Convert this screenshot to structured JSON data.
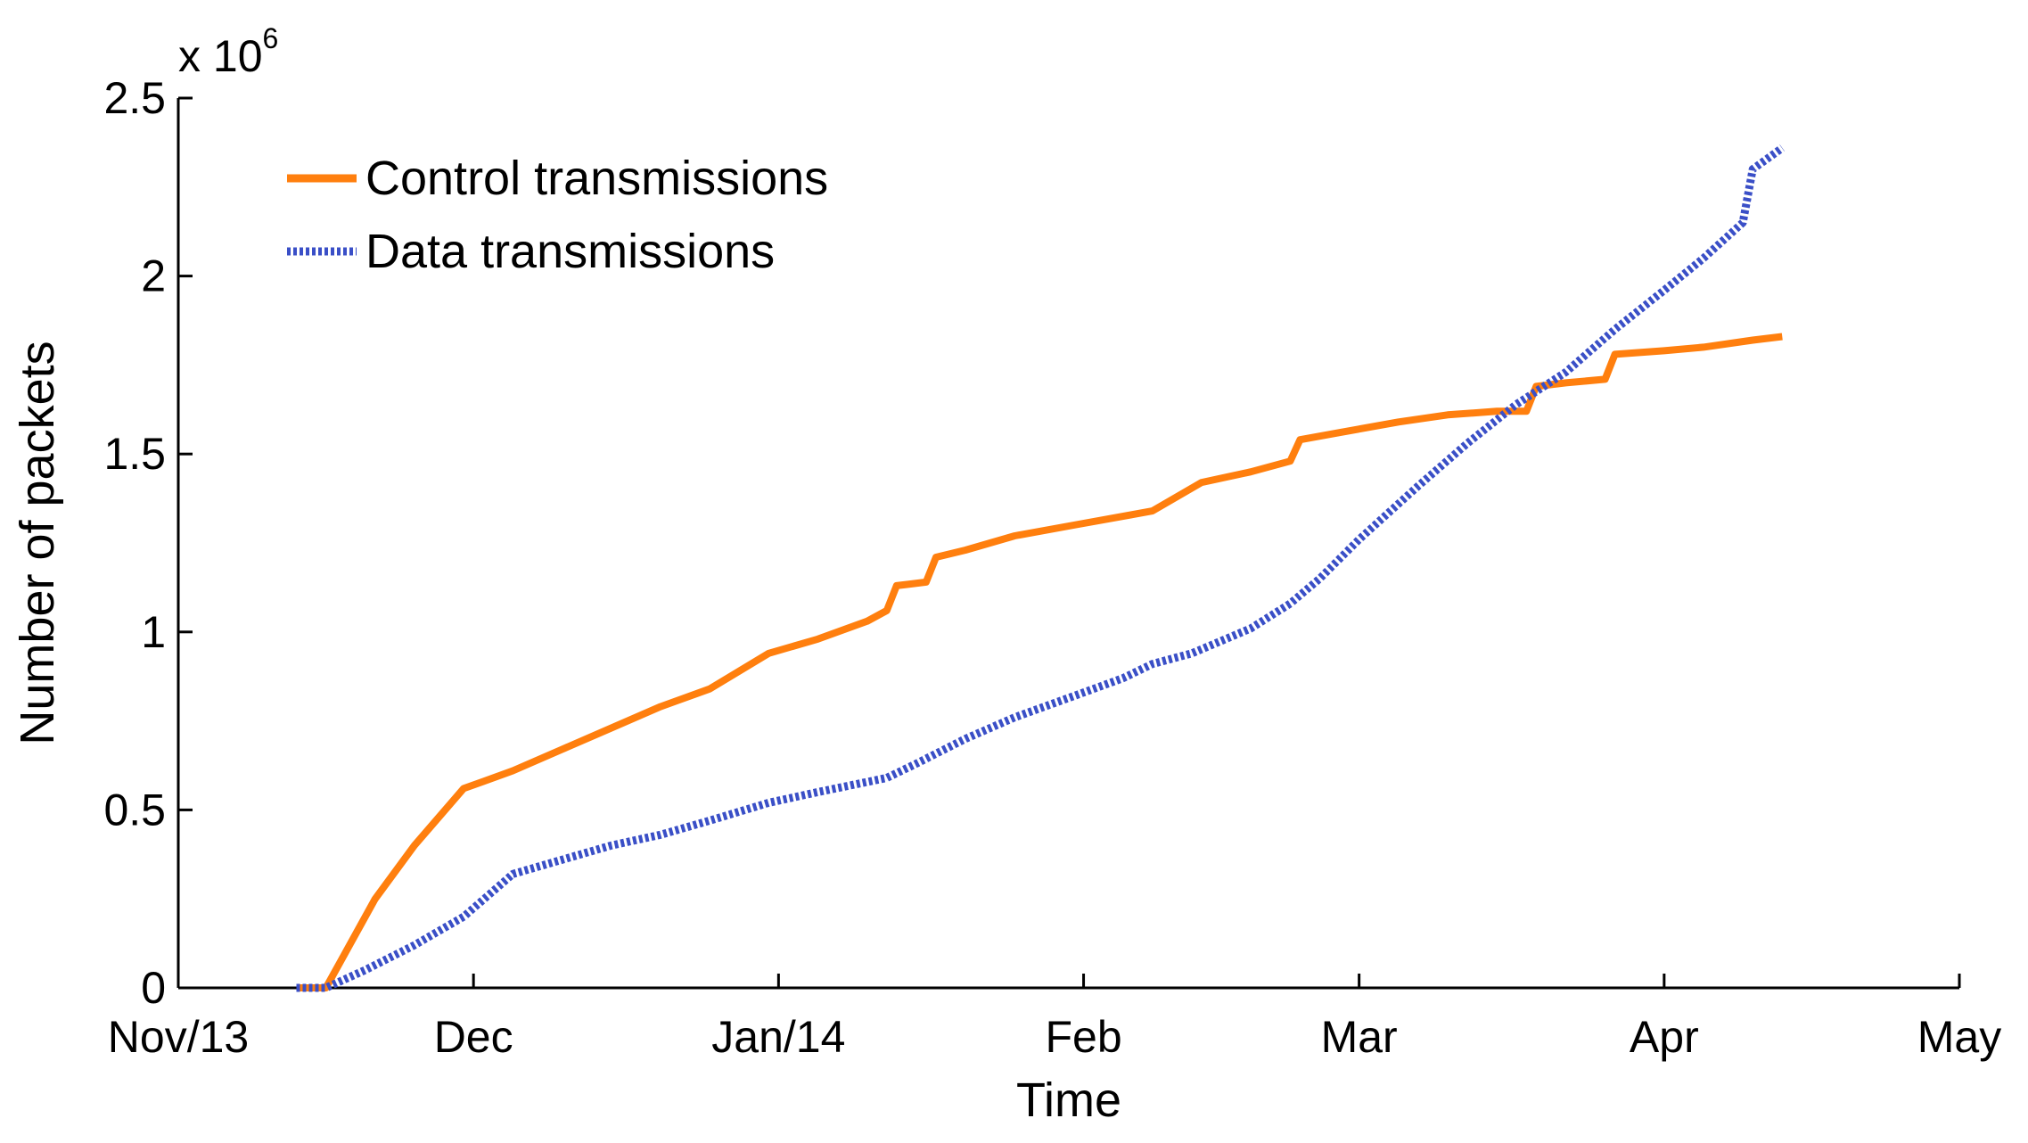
{
  "chart_data": {
    "type": "line",
    "title": "",
    "xlabel": "Time",
    "ylabel": "Number of packets",
    "y_multiplier_label": "x 10",
    "y_multiplier_exponent": "6",
    "y_multiplier": 1000000,
    "xlim": [
      "2013-11-01",
      "2014-05-01"
    ],
    "ylim": [
      0,
      2.5
    ],
    "x_ticks": [
      {
        "date": "2013-11-01",
        "label": "Nov/13"
      },
      {
        "date": "2013-12-01",
        "label": "Dec"
      },
      {
        "date": "2014-01-01",
        "label": "Jan/14"
      },
      {
        "date": "2014-02-01",
        "label": "Feb"
      },
      {
        "date": "2014-03-01",
        "label": "Mar"
      },
      {
        "date": "2014-04-01",
        "label": "Apr"
      },
      {
        "date": "2014-05-01",
        "label": "May"
      }
    ],
    "y_ticks": [
      {
        "value": 0,
        "label": "0"
      },
      {
        "value": 0.5,
        "label": "0.5"
      },
      {
        "value": 1,
        "label": "1"
      },
      {
        "value": 1.5,
        "label": "1.5"
      },
      {
        "value": 2,
        "label": "2"
      },
      {
        "value": 2.5,
        "label": "2.5"
      }
    ],
    "grid": false,
    "legend_position": "top-left",
    "series": [
      {
        "name": "Control transmissions",
        "color": "#ff7f0e",
        "style": "solid",
        "points": [
          [
            "2013-11-13",
            0.0
          ],
          [
            "2013-11-16",
            0.0
          ],
          [
            "2013-11-18",
            0.1
          ],
          [
            "2013-11-21",
            0.25
          ],
          [
            "2013-11-25",
            0.4
          ],
          [
            "2013-11-30",
            0.56
          ],
          [
            "2013-12-02",
            0.58
          ],
          [
            "2013-12-05",
            0.61
          ],
          [
            "2013-12-10",
            0.67
          ],
          [
            "2013-12-15",
            0.73
          ],
          [
            "2013-12-20",
            0.79
          ],
          [
            "2013-12-25",
            0.84
          ],
          [
            "2013-12-31",
            0.94
          ],
          [
            "2014-01-05",
            0.98
          ],
          [
            "2014-01-10",
            1.03
          ],
          [
            "2014-01-12",
            1.06
          ],
          [
            "2014-01-13",
            1.13
          ],
          [
            "2014-01-16",
            1.14
          ],
          [
            "2014-01-17",
            1.21
          ],
          [
            "2014-01-20",
            1.23
          ],
          [
            "2014-01-25",
            1.27
          ],
          [
            "2014-01-31",
            1.3
          ],
          [
            "2014-02-06",
            1.33
          ],
          [
            "2014-02-08",
            1.34
          ],
          [
            "2014-02-13",
            1.42
          ],
          [
            "2014-02-18",
            1.45
          ],
          [
            "2014-02-22",
            1.48
          ],
          [
            "2014-02-23",
            1.54
          ],
          [
            "2014-02-27",
            1.56
          ],
          [
            "2014-03-05",
            1.59
          ],
          [
            "2014-03-10",
            1.61
          ],
          [
            "2014-03-15",
            1.62
          ],
          [
            "2014-03-18",
            1.62
          ],
          [
            "2014-03-19",
            1.69
          ],
          [
            "2014-03-22",
            1.7
          ],
          [
            "2014-03-26",
            1.71
          ],
          [
            "2014-03-27",
            1.78
          ],
          [
            "2014-04-01",
            1.79
          ],
          [
            "2014-04-05",
            1.8
          ],
          [
            "2014-04-10",
            1.82
          ],
          [
            "2014-04-13",
            1.83
          ]
        ]
      },
      {
        "name": "Data transmissions",
        "color": "#3a4fc7",
        "style": "dotted",
        "points": [
          [
            "2013-11-13",
            0.0
          ],
          [
            "2013-11-16",
            0.0
          ],
          [
            "2013-11-20",
            0.05
          ],
          [
            "2013-11-25",
            0.12
          ],
          [
            "2013-11-30",
            0.2
          ],
          [
            "2013-12-05",
            0.32
          ],
          [
            "2013-12-10",
            0.36
          ],
          [
            "2013-12-15",
            0.4
          ],
          [
            "2013-12-20",
            0.43
          ],
          [
            "2013-12-25",
            0.47
          ],
          [
            "2013-12-31",
            0.52
          ],
          [
            "2014-01-05",
            0.55
          ],
          [
            "2014-01-12",
            0.59
          ],
          [
            "2014-01-15",
            0.63
          ],
          [
            "2014-01-20",
            0.7
          ],
          [
            "2014-01-25",
            0.76
          ],
          [
            "2014-01-31",
            0.82
          ],
          [
            "2014-02-05",
            0.87
          ],
          [
            "2014-02-08",
            0.91
          ],
          [
            "2014-02-12",
            0.94
          ],
          [
            "2014-02-18",
            1.01
          ],
          [
            "2014-02-22",
            1.08
          ],
          [
            "2014-02-25",
            1.15
          ],
          [
            "2014-03-01",
            1.26
          ],
          [
            "2014-03-07",
            1.41
          ],
          [
            "2014-03-12",
            1.53
          ],
          [
            "2014-03-17",
            1.64
          ],
          [
            "2014-03-22",
            1.73
          ],
          [
            "2014-03-27",
            1.85
          ],
          [
            "2014-04-01",
            1.96
          ],
          [
            "2014-04-05",
            2.05
          ],
          [
            "2014-04-09",
            2.15
          ],
          [
            "2014-04-10",
            2.3
          ],
          [
            "2014-04-13",
            2.36
          ]
        ]
      }
    ]
  }
}
